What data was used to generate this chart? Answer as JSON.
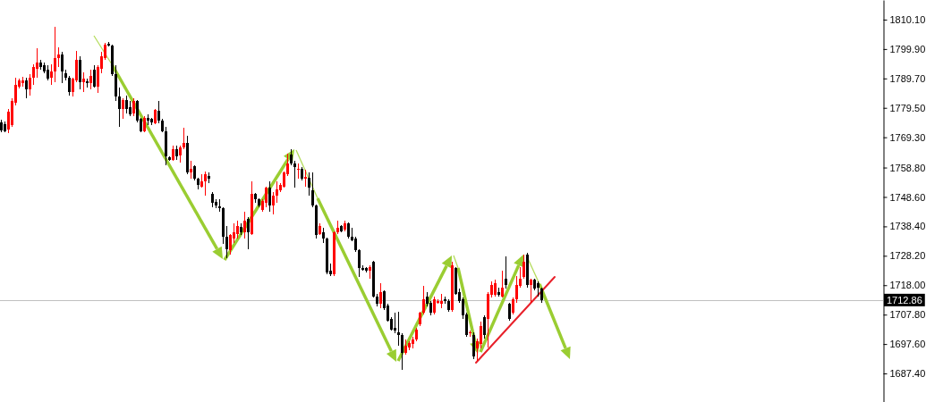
{
  "chart_data": {
    "type": "candlestick",
    "categories": [
      null,
      null,
      null,
      null,
      null,
      null,
      null,
      null,
      null,
      null,
      null,
      null,
      null,
      null,
      null,
      null,
      null,
      null,
      null,
      null,
      null,
      null,
      null,
      null,
      null,
      null,
      null,
      null,
      null,
      null,
      null,
      null,
      null,
      null,
      null,
      null,
      null,
      null,
      null,
      null,
      null,
      null,
      null,
      null,
      null,
      null,
      null,
      null,
      null,
      null,
      null,
      null,
      null,
      null,
      null,
      null,
      null,
      null,
      null,
      null,
      null,
      null,
      null,
      null,
      null,
      null,
      null,
      null,
      null,
      null,
      null,
      null,
      null,
      null,
      null,
      null,
      null,
      null,
      null,
      null,
      null,
      null,
      null,
      null,
      null,
      null,
      null,
      null,
      null,
      null,
      null,
      null,
      null,
      null,
      null,
      null,
      null,
      null,
      null,
      null,
      null,
      null,
      null,
      null,
      null,
      null,
      null,
      null,
      null,
      null,
      null,
      null,
      null,
      null,
      null,
      null,
      null,
      null,
      null,
      null,
      null,
      null,
      null,
      null,
      null,
      null,
      null,
      null,
      null,
      null,
      null,
      null,
      null,
      null,
      null,
      null,
      null,
      null,
      null,
      null,
      null,
      null,
      null,
      null,
      null,
      null,
      null,
      null,
      null,
      null,
      null,
      null,
      null,
      null,
      null,
      null,
      null,
      null,
      null,
      null,
      null,
      null,
      null,
      null,
      null,
      null,
      null,
      null,
      null,
      null,
      null,
      null,
      null,
      null,
      null,
      null,
      null,
      null,
      null,
      null,
      null,
      null,
      null,
      null,
      null,
      null,
      null,
      null,
      null,
      null,
      null,
      null,
      null,
      null,
      null,
      null,
      null,
      null,
      null,
      null,
      null,
      null,
      null,
      null,
      null,
      null,
      null,
      null,
      null,
      null,
      null,
      null,
      null,
      null,
      null,
      null,
      null,
      null,
      null,
      null,
      null,
      null,
      null,
      null,
      null,
      null,
      null,
      null,
      null,
      null,
      null,
      null,
      null,
      null,
      null,
      null,
      null,
      null,
      null,
      null,
      null,
      null,
      null,
      null,
      null,
      null,
      null
    ],
    "ohlc": [
      [
        1774.5,
        1775.4,
        1771.1,
        1771.8
      ],
      [
        1773.8,
        1774.9,
        1771.1,
        1771.4
      ],
      [
        1772.0,
        1779.2,
        1770.7,
        1778.2
      ],
      [
        1773.5,
        1782.8,
        1772.8,
        1781.8
      ],
      [
        1781.3,
        1790.0,
        1780.2,
        1787.5
      ],
      [
        1786.9,
        1789.5,
        1786.2,
        1789.0
      ],
      [
        1788.0,
        1790.3,
        1786.9,
        1789.0
      ],
      [
        1789.0,
        1790.0,
        1782.8,
        1785.9
      ],
      [
        1785.9,
        1791.1,
        1783.8,
        1790.0
      ],
      [
        1790.0,
        1794.7,
        1787.5,
        1793.7
      ],
      [
        1793.1,
        1800.1,
        1790.0,
        1795.2
      ],
      [
        1795.2,
        1796.2,
        1792.6,
        1793.7
      ],
      [
        1794.2,
        1795.2,
        1791.6,
        1792.1
      ],
      [
        1792.6,
        1794.2,
        1789.0,
        1789.5
      ],
      [
        1790.0,
        1794.7,
        1787.5,
        1792.1
      ],
      [
        1792.1,
        1807.6,
        1788.5,
        1796.9
      ],
      [
        1796.9,
        1800.4,
        1793.7,
        1798.0
      ],
      [
        1798.0,
        1798.8,
        1788.0,
        1792.1
      ],
      [
        1791.4,
        1792.6,
        1789.0,
        1790.0
      ],
      [
        1790.0,
        1790.6,
        1783.8,
        1784.9
      ],
      [
        1784.9,
        1790.0,
        1783.3,
        1789.5
      ],
      [
        1789.0,
        1799.3,
        1788.5,
        1796.2
      ],
      [
        1796.2,
        1797.3,
        1785.9,
        1788.5
      ],
      [
        1788.5,
        1791.8,
        1784.9,
        1789.5
      ],
      [
        1788.7,
        1789.5,
        1786.4,
        1788.0
      ],
      [
        1788.0,
        1792.6,
        1785.9,
        1790.6
      ],
      [
        1792.6,
        1794.2,
        1786.4,
        1786.9
      ],
      [
        1786.9,
        1794.2,
        1784.6,
        1793.7
      ],
      [
        1793.1,
        1798.8,
        1791.6,
        1797.3
      ],
      [
        1796.8,
        1801.9,
        1796.2,
        1801.4
      ],
      [
        1801.7,
        1802.4,
        1800.9,
        1801.1
      ],
      [
        1801.1,
        1801.4,
        1790.6,
        1791.1
      ],
      [
        1791.1,
        1794.2,
        1781.8,
        1783.3
      ],
      [
        1783.3,
        1786.4,
        1773.0,
        1779.2
      ],
      [
        1779.2,
        1782.8,
        1775.6,
        1782.3
      ],
      [
        1782.3,
        1783.8,
        1777.6,
        1779.2
      ],
      [
        1779.7,
        1781.8,
        1776.6,
        1777.1
      ],
      [
        1777.6,
        1782.8,
        1776.6,
        1781.8
      ],
      [
        1781.8,
        1782.3,
        1774.5,
        1775.1
      ],
      [
        1775.6,
        1776.1,
        1770.9,
        1771.4
      ],
      [
        1771.4,
        1776.6,
        1770.9,
        1776.1
      ],
      [
        1776.1,
        1777.1,
        1773.5,
        1775.1
      ],
      [
        1775.6,
        1776.1,
        1773.5,
        1774.5
      ],
      [
        1774.3,
        1779.2,
        1773.7,
        1778.7
      ],
      [
        1778.5,
        1782.0,
        1774.0,
        1775.1
      ],
      [
        1775.1,
        1775.6,
        1770.9,
        1771.4
      ],
      [
        1771.4,
        1773.0,
        1759.6,
        1762.7
      ],
      [
        1762.3,
        1762.7,
        1761.1,
        1761.3
      ],
      [
        1761.6,
        1766.3,
        1761.1,
        1765.2
      ],
      [
        1765.2,
        1766.3,
        1761.3,
        1762.7
      ],
      [
        1763.0,
        1766.3,
        1760.6,
        1765.7
      ],
      [
        1765.7,
        1772.5,
        1765.2,
        1767.3
      ],
      [
        1767.3,
        1769.9,
        1756.5,
        1757.0
      ],
      [
        1757.0,
        1761.1,
        1754.9,
        1758.5
      ],
      [
        1759.2,
        1759.6,
        1754.4,
        1754.9
      ],
      [
        1754.9,
        1755.4,
        1751.3,
        1752.8
      ],
      [
        1752.3,
        1756.5,
        1751.8,
        1754.1
      ],
      [
        1753.9,
        1757.5,
        1749.2,
        1756.5
      ],
      [
        1755.9,
        1757.2,
        1753.3,
        1754.9
      ],
      [
        1749.7,
        1750.3,
        1745.1,
        1746.6
      ],
      [
        1746.8,
        1747.7,
        1744.6,
        1745.6
      ],
      [
        1745.4,
        1747.7,
        1743.5,
        1744.6
      ],
      [
        1744.8,
        1745.1,
        1732.2,
        1734.7
      ],
      [
        1734.7,
        1738.4,
        1727.5,
        1730.6
      ],
      [
        1730.1,
        1735.8,
        1728.6,
        1735.3
      ],
      [
        1734.2,
        1739.4,
        1732.7,
        1736.3
      ],
      [
        1735.8,
        1740.4,
        1734.2,
        1738.4
      ],
      [
        1738.2,
        1739.4,
        1735.3,
        1736.3
      ],
      [
        1736.3,
        1743.5,
        1734.2,
        1740.4
      ],
      [
        1740.9,
        1741.5,
        1730.6,
        1736.3
      ],
      [
        1735.8,
        1753.9,
        1735.3,
        1749.7
      ],
      [
        1749.7,
        1749.9,
        1746.6,
        1747.7
      ],
      [
        1747.9,
        1748.2,
        1745.1,
        1745.6
      ],
      [
        1744.0,
        1747.7,
        1743.5,
        1747.1
      ],
      [
        1746.6,
        1752.3,
        1745.1,
        1751.8
      ],
      [
        1751.8,
        1753.9,
        1743.5,
        1745.6
      ],
      [
        1745.6,
        1750.2,
        1742.5,
        1749.2
      ],
      [
        1749.2,
        1753.9,
        1746.6,
        1751.3
      ],
      [
        1750.8,
        1753.4,
        1750.2,
        1752.8
      ],
      [
        1752.3,
        1757.5,
        1751.8,
        1757.0
      ],
      [
        1756.5,
        1763.7,
        1755.9,
        1760.1
      ],
      [
        1763.2,
        1765.2,
        1759.6,
        1760.1
      ],
      [
        1760.1,
        1761.1,
        1751.8,
        1759.0
      ],
      [
        1758.0,
        1760.1,
        1754.9,
        1758.5
      ],
      [
        1758.5,
        1759.0,
        1754.4,
        1754.9
      ],
      [
        1754.9,
        1758.0,
        1752.3,
        1755.6
      ],
      [
        1755.1,
        1757.0,
        1749.2,
        1751.8
      ],
      [
        1750.8,
        1757.0,
        1745.1,
        1745.6
      ],
      [
        1745.6,
        1746.1,
        1734.2,
        1735.3
      ],
      [
        1735.8,
        1739.4,
        1735.3,
        1738.4
      ],
      [
        1736.3,
        1737.9,
        1732.7,
        1734.2
      ],
      [
        1734.2,
        1734.4,
        1721.8,
        1722.3
      ],
      [
        1722.9,
        1725.4,
        1721.3,
        1721.8
      ],
      [
        1721.8,
        1736.8,
        1721.3,
        1736.3
      ],
      [
        1736.3,
        1740.4,
        1735.8,
        1737.9
      ],
      [
        1738.4,
        1738.9,
        1736.3,
        1736.8
      ],
      [
        1737.3,
        1740.4,
        1736.8,
        1739.4
      ],
      [
        1739.4,
        1739.9,
        1734.2,
        1734.8
      ],
      [
        1734.8,
        1737.9,
        1733.2,
        1733.7
      ],
      [
        1734.2,
        1734.8,
        1729.6,
        1730.1
      ],
      [
        1730.3,
        1730.6,
        1720.8,
        1723.9
      ],
      [
        1723.9,
        1724.9,
        1722.9,
        1723.4
      ],
      [
        1723.9,
        1724.4,
        1722.4,
        1722.9
      ],
      [
        1722.9,
        1724.9,
        1720.3,
        1724.4
      ],
      [
        1726.0,
        1726.5,
        1713.6,
        1714.1
      ],
      [
        1714.1,
        1715.1,
        1710.5,
        1711.5
      ],
      [
        1711.5,
        1718.7,
        1710.0,
        1715.6
      ],
      [
        1715.8,
        1716.1,
        1709.4,
        1710.0
      ],
      [
        1711.0,
        1711.5,
        1705.3,
        1705.8
      ],
      [
        1706.3,
        1706.9,
        1702.2,
        1702.7
      ],
      [
        1703.2,
        1708.4,
        1701.2,
        1702.2
      ],
      [
        1701.7,
        1708.9,
        1697.0,
        1700.7
      ],
      [
        1700.7,
        1701.2,
        1688.8,
        1694.4
      ],
      [
        1694.4,
        1699.1,
        1693.9,
        1697.0
      ],
      [
        1696.5,
        1698.6,
        1695.5,
        1698.1
      ],
      [
        1697.5,
        1700.1,
        1696.0,
        1699.1
      ],
      [
        1699.1,
        1703.2,
        1698.6,
        1702.7
      ],
      [
        1704.3,
        1708.9,
        1703.8,
        1708.4
      ],
      [
        1708.4,
        1717.7,
        1707.9,
        1713.1
      ],
      [
        1714.1,
        1715.6,
        1710.5,
        1711.5
      ],
      [
        1712.0,
        1712.5,
        1707.4,
        1708.4
      ],
      [
        1708.4,
        1714.1,
        1707.9,
        1713.1
      ],
      [
        1712.0,
        1713.1,
        1711.5,
        1712.5
      ],
      [
        1711.5,
        1715.1,
        1709.9,
        1712.5
      ],
      [
        1713.1,
        1714.1,
        1711.5,
        1712.5
      ],
      [
        1712.5,
        1713.1,
        1708.9,
        1709.4
      ],
      [
        1709.4,
        1726.0,
        1708.9,
        1724.9
      ],
      [
        1723.9,
        1724.4,
        1714.6,
        1715.1
      ],
      [
        1715.6,
        1716.7,
        1712.0,
        1712.5
      ],
      [
        1713.1,
        1713.6,
        1706.3,
        1707.4
      ],
      [
        1707.9,
        1708.4,
        1700.1,
        1700.6
      ],
      [
        1701.2,
        1702.2,
        1700.1,
        1701.7
      ],
      [
        1700.6,
        1701.7,
        1692.4,
        1693.4
      ],
      [
        1696.0,
        1699.6,
        1691.9,
        1698.6
      ],
      [
        1697.6,
        1705.3,
        1696.0,
        1703.7
      ],
      [
        1706.8,
        1707.4,
        1699.6,
        1700.6
      ],
      [
        1706.3,
        1715.6,
        1696.5,
        1715.1
      ],
      [
        1714.6,
        1719.3,
        1713.6,
        1718.2
      ],
      [
        1714.6,
        1719.8,
        1714.1,
        1718.7
      ],
      [
        1715.6,
        1717.2,
        1714.1,
        1714.6
      ],
      [
        1714.1,
        1722.9,
        1713.6,
        1717.2
      ],
      [
        1720.3,
        1728.0,
        1716.7,
        1718.2
      ],
      [
        1711.5,
        1712.0,
        1705.8,
        1706.3
      ],
      [
        1708.4,
        1713.6,
        1707.9,
        1713.1
      ],
      [
        1713.1,
        1721.3,
        1712.0,
        1718.2
      ],
      [
        1717.7,
        1724.4,
        1717.2,
        1720.3
      ],
      [
        1720.8,
        1728.6,
        1720.3,
        1726.0
      ],
      [
        1728.6,
        1729.1,
        1717.2,
        1718.2
      ],
      [
        1718.2,
        1720.3,
        1712.0,
        1719.8
      ],
      [
        1719.8,
        1720.3,
        1716.2,
        1716.7
      ],
      [
        1718.7,
        1719.3,
        1714.1,
        1717.2
      ],
      [
        1716.7,
        1717.2,
        1712.0,
        1712.9
      ],
      null,
      null,
      null,
      null,
      null,
      null,
      null,
      null,
      null,
      null,
      null,
      null,
      null,
      null,
      null,
      null,
      null,
      null,
      null,
      null,
      null,
      null,
      null,
      null,
      null,
      null,
      null,
      null,
      null,
      null,
      null,
      null,
      null,
      null,
      null,
      null,
      null,
      null,
      null,
      null,
      null,
      null,
      null,
      null,
      null,
      null,
      null,
      null,
      null,
      null,
      null,
      null,
      null,
      null,
      null,
      null,
      null,
      null,
      null,
      null,
      null,
      null,
      null,
      null,
      null,
      null,
      null,
      null,
      null,
      null,
      null,
      null,
      null,
      null,
      null,
      null,
      null,
      null,
      null,
      null,
      null,
      null,
      null,
      null,
      null,
      null,
      null,
      null,
      null,
      null,
      null,
      null,
      null,
      null,
      null
    ],
    "colors": [
      "#000000",
      "#000000",
      "#ff0000",
      "#ff0000",
      "#ff0000",
      "#ff0000",
      "#ff0000",
      "#000000",
      "#ff0000",
      "#ff0000",
      "#ff0000",
      "#000000",
      "#000000",
      "#000000",
      "#ff0000",
      "#ff0000",
      "#ff0000",
      "#000000",
      "#000000",
      "#000000",
      "#ff0000",
      "#ff0000",
      "#000000",
      "#ff0000",
      "#000000",
      "#ff0000",
      "#000000",
      "#ff0000",
      "#ff0000",
      "#ff0000",
      "#000000",
      "#000000",
      "#000000",
      "#000000",
      "#ff0000",
      "#000000",
      "#000000",
      "#ff0000",
      "#000000",
      "#000000",
      "#ff0000",
      "#000000",
      "#000000",
      "#ff0000",
      "#000000",
      "#000000",
      "#000000",
      "#000000",
      "#ff0000",
      "#000000",
      "#ff0000",
      "#ff0000",
      "#000000",
      "#ff0000",
      "#000000",
      "#000000",
      "#ff0000",
      "#ff0000",
      "#000000",
      "#000000",
      "#000000",
      "#000000",
      "#000000",
      "#000000",
      "#ff0000",
      "#ff0000",
      "#ff0000",
      "#000000",
      "#ff0000",
      "#000000",
      "#ff0000",
      "#000000",
      "#000000",
      "#ff0000",
      "#ff0000",
      "#000000",
      "#ff0000",
      "#ff0000",
      "#ff0000",
      "#ff0000",
      "#ff0000",
      "#000000",
      "#000000",
      "#ff0000",
      "#000000",
      "#ff0000",
      "#000000",
      "#000000",
      "#000000",
      "#ff0000",
      "#000000",
      "#000000",
      "#000000",
      "#ff0000",
      "#ff0000",
      "#000000",
      "#ff0000",
      "#000000",
      "#000000",
      "#000000",
      "#000000",
      "#000000",
      "#000000",
      "#ff0000",
      "#000000",
      "#000000",
      "#ff0000",
      "#000000",
      "#000000",
      "#000000",
      "#000000",
      "#000000",
      "#000000",
      "#ff0000",
      "#ff0000",
      "#ff0000",
      "#ff0000",
      "#ff0000",
      "#ff0000",
      "#000000",
      "#000000",
      "#ff0000",
      "#ff0000",
      "#ff0000",
      "#000000",
      "#000000",
      "#ff0000",
      "#000000",
      "#000000",
      "#000000",
      "#000000",
      "#ff0000",
      "#000000",
      "#ff0000",
      "#ff0000",
      "#000000",
      "#ff0000",
      "#ff0000",
      "#ff0000",
      "#000000",
      "#ff0000",
      "#000000",
      "#000000",
      "#ff0000",
      "#ff0000",
      "#ff0000",
      "#ff0000",
      "#000000",
      "#ff0000",
      "#000000",
      "#000000",
      "#000000",
      null,
      null,
      null,
      null,
      null,
      null,
      null,
      null,
      null,
      null,
      null,
      null,
      null,
      null,
      null,
      null,
      null,
      null,
      null,
      null,
      null,
      null,
      null,
      null,
      null,
      null,
      null,
      null,
      null,
      null,
      null,
      null,
      null,
      null,
      null,
      null,
      null,
      null,
      null,
      null,
      null,
      null,
      null,
      null,
      null,
      null,
      null,
      null,
      null,
      null,
      null,
      null,
      null,
      null,
      null,
      null,
      null,
      null,
      null,
      null,
      null,
      null,
      null,
      null,
      null,
      null,
      null,
      null,
      null,
      null,
      null,
      null,
      null,
      null,
      null,
      null,
      null,
      null,
      null,
      null,
      null,
      null,
      null,
      null,
      null,
      null,
      null,
      null,
      null,
      null,
      null,
      null,
      null,
      null,
      null
    ],
    "ylim": [
      1677.5,
      1816.9
    ],
    "yticks": [
      {
        "value": 1810.1,
        "label": "1810.10"
      },
      {
        "value": 1799.9,
        "label": "1799.90"
      },
      {
        "value": 1789.7,
        "label": "1789.70"
      },
      {
        "value": 1779.5,
        "label": "1779.50"
      },
      {
        "value": 1769.3,
        "label": "1769.30"
      },
      {
        "value": 1758.8,
        "label": "1758.80"
      },
      {
        "value": 1748.6,
        "label": "1748.60"
      },
      {
        "value": 1738.4,
        "label": "1738.40"
      },
      {
        "value": 1728.2,
        "label": "1728.20"
      },
      {
        "value": 1718.0,
        "label": "1718.00"
      },
      {
        "value": 1707.8,
        "label": "1707.80"
      },
      {
        "value": 1697.6,
        "label": "1697.60"
      },
      {
        "value": 1687.4,
        "label": "1687.40"
      }
    ],
    "tick_labels": "y",
    "ref_lines": [
      {
        "axis": "y",
        "value": 1712.86,
        "label": "1712.86",
        "color": "#c0c0c0"
      }
    ]
  }
}
